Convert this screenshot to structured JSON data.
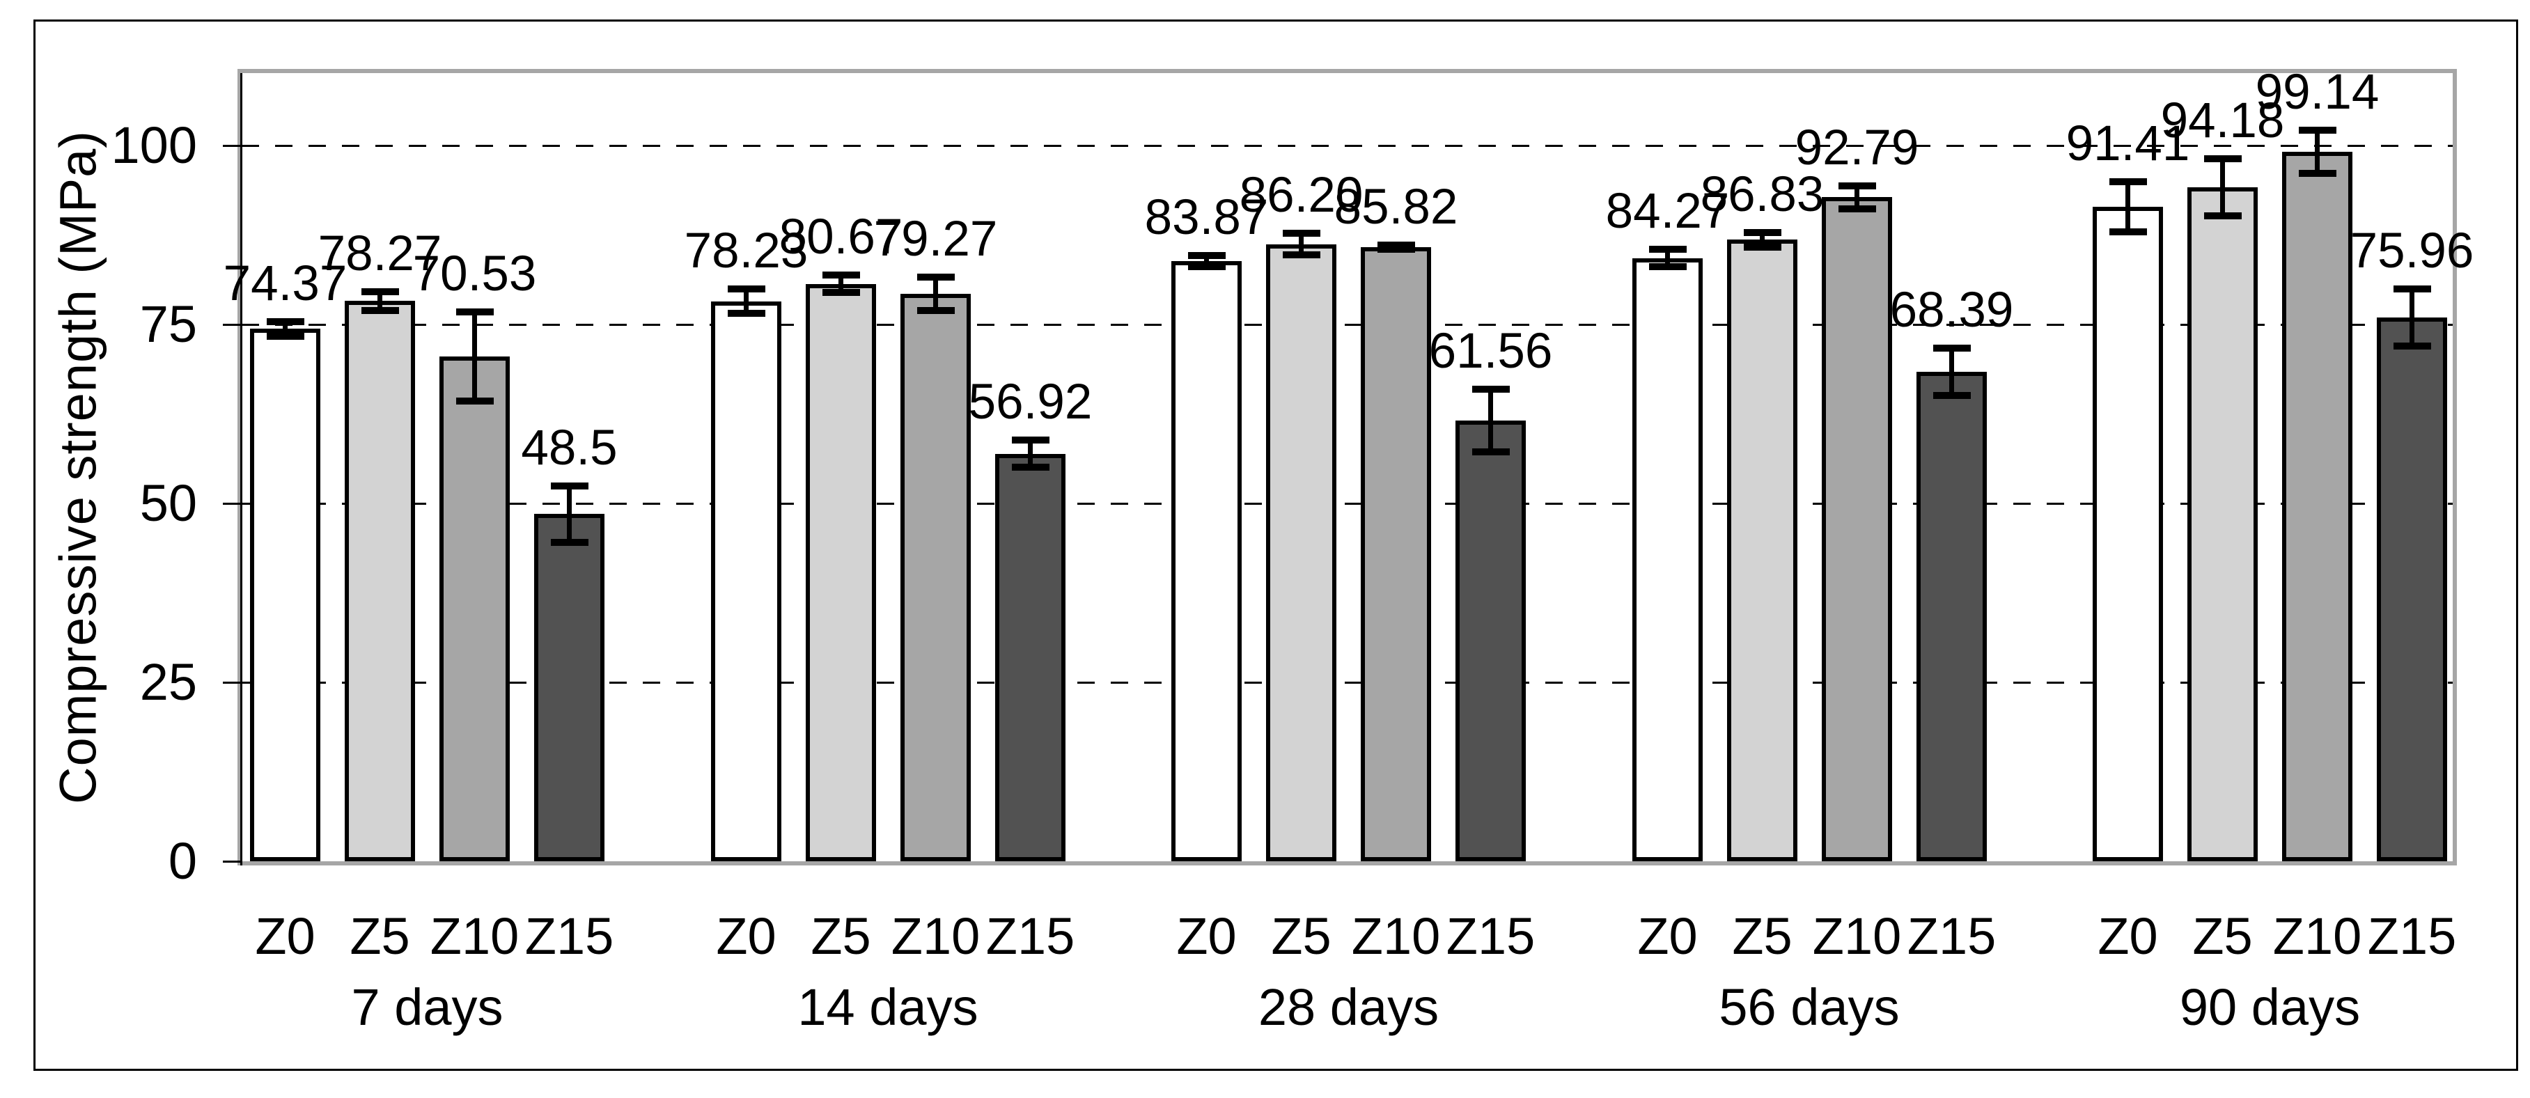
{
  "chart_data": {
    "type": "bar",
    "title": "",
    "xlabel": "",
    "ylabel": "Compressive strength (MPa)",
    "ylim": [
      0,
      110
    ],
    "yticks": [
      0,
      25,
      50,
      75,
      100
    ],
    "ytick_labels": [
      "0",
      "25",
      "50",
      "75",
      "100"
    ],
    "grid": "horizontal-dashed",
    "legend_position": "none",
    "categories": [
      "Z0",
      "Z5",
      "Z10",
      "Z15"
    ],
    "series_fills": [
      "#ffffff",
      "#d3d3d3",
      "#a6a6a6",
      "#525252"
    ],
    "groups": [
      {
        "label": "7 days",
        "values": [
          74.37,
          78.27,
          70.53,
          48.5
        ],
        "value_labels": [
          "74.37",
          "78.27",
          "70.53",
          "48.5"
        ],
        "errors": [
          1.0,
          1.3,
          6.2,
          3.9
        ]
      },
      {
        "label": "14 days",
        "values": [
          78.23,
          80.67,
          79.27,
          56.92
        ],
        "value_labels": [
          "78.23",
          "80.67",
          "79.27",
          "56.92"
        ],
        "errors": [
          1.7,
          1.2,
          2.3,
          1.9
        ]
      },
      {
        "label": "28 days",
        "values": [
          83.87,
          86.2,
          85.82,
          61.56
        ],
        "value_labels": [
          "83.87",
          "86.20",
          "85.82",
          "61.56"
        ],
        "errors": [
          0.8,
          1.5,
          0.3,
          4.4
        ]
      },
      {
        "label": "56 days",
        "values": [
          84.27,
          86.83,
          92.79,
          68.39
        ],
        "value_labels": [
          "84.27",
          "86.83",
          "92.79",
          "68.39"
        ],
        "errors": [
          1.2,
          1.0,
          1.6,
          3.3
        ]
      },
      {
        "label": "90 days",
        "values": [
          91.41,
          94.18,
          99.14,
          75.96
        ],
        "value_labels": [
          "91.41",
          "94.18",
          "99.14",
          "75.96"
        ],
        "errors": [
          3.5,
          4.0,
          3.0,
          4.0
        ]
      }
    ],
    "colors": {
      "bar_border": "#000000",
      "plot_border": "#a6a6a6",
      "axis": "#000000",
      "gridline": "#000000",
      "text": "#000000",
      "background": "#ffffff"
    }
  }
}
